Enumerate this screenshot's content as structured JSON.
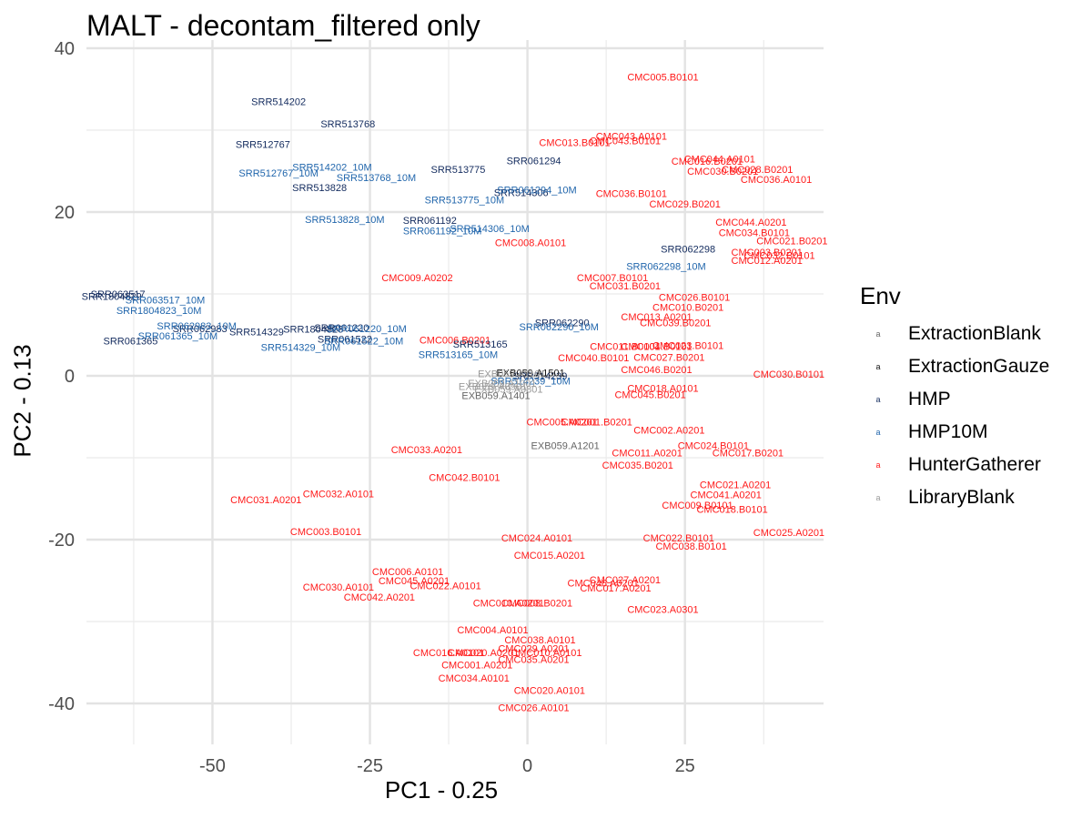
{
  "chart_data": {
    "type": "scatter",
    "title": "MALT - decontam_filtered only",
    "xlabel": "PC1 - 0.25",
    "ylabel": "PC2 - 0.13",
    "xlim": [
      -70,
      47
    ],
    "ylim": [
      -45,
      41
    ],
    "xticks": [
      -50,
      -25,
      0,
      25
    ],
    "xtick_labels": [
      "-50",
      "-25",
      "0",
      "25"
    ],
    "yticks": [
      -40,
      -20,
      0,
      20,
      40
    ],
    "ytick_labels": [
      "-40",
      "-20",
      "0",
      "20",
      "40"
    ],
    "grid": true,
    "legend_title": "Env",
    "legend_position": "right",
    "legend_key_glyph": "a",
    "groups": [
      {
        "name": "ExtractionBlank",
        "color": "#666666"
      },
      {
        "name": "ExtractionGauze",
        "color": "#111111"
      },
      {
        "name": "HMP",
        "color": "#132b5e"
      },
      {
        "name": "HMP10M",
        "color": "#2166ac"
      },
      {
        "name": "HunterGatherer",
        "color": "#ff1a1a"
      },
      {
        "name": "LibraryBlank",
        "color": "#9a9a9a"
      }
    ],
    "points": [
      {
        "label": "CMC005.B0101",
        "x": 21.5,
        "y": 36.5,
        "group": "HunterGatherer"
      },
      {
        "label": "CMC043.A0101",
        "x": 16.5,
        "y": 29.3,
        "group": "HunterGatherer"
      },
      {
        "label": "CMC013.B0101",
        "x": 7.5,
        "y": 28.5,
        "group": "HunterGatherer"
      },
      {
        "label": "CMC043.B0101",
        "x": 15.5,
        "y": 28.7,
        "group": "HunterGatherer"
      },
      {
        "label": "CMC044.A0101",
        "x": 30.5,
        "y": 26.5,
        "group": "HunterGatherer"
      },
      {
        "label": "CMC016.B0201",
        "x": 28.5,
        "y": 26.2,
        "group": "HunterGatherer"
      },
      {
        "label": "CMC030.B0201",
        "x": 31.0,
        "y": 25.0,
        "group": "HunterGatherer"
      },
      {
        "label": "CMC028.B0201",
        "x": 36.5,
        "y": 25.2,
        "group": "HunterGatherer"
      },
      {
        "label": "CMC036.A0101",
        "x": 39.5,
        "y": 24.0,
        "group": "HunterGatherer"
      },
      {
        "label": "CMC036.B0101",
        "x": 16.5,
        "y": 22.3,
        "group": "HunterGatherer"
      },
      {
        "label": "CMC029.B0201",
        "x": 25.0,
        "y": 21.0,
        "group": "HunterGatherer"
      },
      {
        "label": "CMC044.A0201",
        "x": 35.5,
        "y": 18.8,
        "group": "HunterGatherer"
      },
      {
        "label": "CMC034.B0101",
        "x": 36.0,
        "y": 17.5,
        "group": "HunterGatherer"
      },
      {
        "label": "CMC021.B0201",
        "x": 42.0,
        "y": 16.5,
        "group": "HunterGatherer"
      },
      {
        "label": "CMC008.A0101",
        "x": 0.5,
        "y": 16.3,
        "group": "HunterGatherer"
      },
      {
        "label": "CMC003.B0201",
        "x": 38.0,
        "y": 15.1,
        "group": "HunterGatherer"
      },
      {
        "label": "CMC032.B0101",
        "x": 40.0,
        "y": 14.7,
        "group": "HunterGatherer"
      },
      {
        "label": "CMC012.A0201",
        "x": 38.0,
        "y": 14.1,
        "group": "HunterGatherer"
      },
      {
        "label": "CMC009.A0202",
        "x": -17.5,
        "y": 12.0,
        "group": "HunterGatherer"
      },
      {
        "label": "CMC007.B0101",
        "x": 13.5,
        "y": 12.0,
        "group": "HunterGatherer"
      },
      {
        "label": "CMC031.B0201",
        "x": 15.5,
        "y": 11.0,
        "group": "HunterGatherer"
      },
      {
        "label": "CMC026.B0101",
        "x": 26.5,
        "y": 9.6,
        "group": "HunterGatherer"
      },
      {
        "label": "CMC010.B0201",
        "x": 25.5,
        "y": 8.4,
        "group": "HunterGatherer"
      },
      {
        "label": "CMC013.A0201",
        "x": 20.5,
        "y": 7.2,
        "group": "HunterGatherer"
      },
      {
        "label": "CMC039.B0201",
        "x": 23.5,
        "y": 6.5,
        "group": "HunterGatherer"
      },
      {
        "label": "CMC006.B0201",
        "x": -11.5,
        "y": 4.4,
        "group": "HunterGatherer"
      },
      {
        "label": "CMC011.B0101",
        "x": 15.5,
        "y": 3.6,
        "group": "HunterGatherer"
      },
      {
        "label": "CMC004.B0101",
        "x": 20.5,
        "y": 3.6,
        "group": "HunterGatherer"
      },
      {
        "label": "CMC023.B0101",
        "x": 25.5,
        "y": 3.7,
        "group": "HunterGatherer"
      },
      {
        "label": "CMC040.B0101",
        "x": 10.5,
        "y": 2.2,
        "group": "HunterGatherer"
      },
      {
        "label": "CMC027.B0201",
        "x": 22.5,
        "y": 2.3,
        "group": "HunterGatherer"
      },
      {
        "label": "CMC046.B0201",
        "x": 20.5,
        "y": 0.8,
        "group": "HunterGatherer"
      },
      {
        "label": "CMC030.B0101",
        "x": 41.5,
        "y": 0.2,
        "group": "HunterGatherer"
      },
      {
        "label": "CMC018.A0101",
        "x": 21.5,
        "y": -1.5,
        "group": "HunterGatherer"
      },
      {
        "label": "CMC045.B0201",
        "x": 19.5,
        "y": -2.3,
        "group": "HunterGatherer"
      },
      {
        "label": "CMC005.A0201",
        "x": 5.5,
        "y": -5.6,
        "group": "HunterGatherer"
      },
      {
        "label": "CMC001.B0201",
        "x": 11.0,
        "y": -5.6,
        "group": "HunterGatherer"
      },
      {
        "label": "CMC002.A0201",
        "x": 22.5,
        "y": -6.6,
        "group": "HunterGatherer"
      },
      {
        "label": "CMC033.A0201",
        "x": -16.0,
        "y": -9.0,
        "group": "HunterGatherer"
      },
      {
        "label": "CMC024.B0101",
        "x": 29.5,
        "y": -8.5,
        "group": "HunterGatherer"
      },
      {
        "label": "CMC011.A0201",
        "x": 19.0,
        "y": -9.4,
        "group": "HunterGatherer"
      },
      {
        "label": "CMC017.B0201",
        "x": 35.0,
        "y": -9.4,
        "group": "HunterGatherer"
      },
      {
        "label": "CMC035.B0201",
        "x": 17.5,
        "y": -10.9,
        "group": "HunterGatherer"
      },
      {
        "label": "CMC042.B0101",
        "x": -10.0,
        "y": -12.4,
        "group": "HunterGatherer"
      },
      {
        "label": "CMC021.A0201",
        "x": 33.0,
        "y": -13.3,
        "group": "HunterGatherer"
      },
      {
        "label": "CMC041.A0201",
        "x": 31.5,
        "y": -14.5,
        "group": "HunterGatherer"
      },
      {
        "label": "CMC032.A0101",
        "x": -30.0,
        "y": -14.4,
        "group": "HunterGatherer"
      },
      {
        "label": "CMC031.A0201",
        "x": -41.5,
        "y": -15.1,
        "group": "HunterGatherer"
      },
      {
        "label": "CMC009.B0101",
        "x": 27.0,
        "y": -15.8,
        "group": "HunterGatherer"
      },
      {
        "label": "CMC018.B0101",
        "x": 32.5,
        "y": -16.3,
        "group": "HunterGatherer"
      },
      {
        "label": "CMC003.B0101",
        "x": -32.0,
        "y": -19.0,
        "group": "HunterGatherer"
      },
      {
        "label": "CMC025.A0201",
        "x": 41.5,
        "y": -19.1,
        "group": "HunterGatherer"
      },
      {
        "label": "CMC024.A0101",
        "x": 1.5,
        "y": -19.8,
        "group": "HunterGatherer"
      },
      {
        "label": "CMC022.B0101",
        "x": 24.0,
        "y": -19.8,
        "group": "HunterGatherer"
      },
      {
        "label": "CMC038.B0101",
        "x": 26.0,
        "y": -20.8,
        "group": "HunterGatherer"
      },
      {
        "label": "CMC015.A0201",
        "x": 3.5,
        "y": -21.9,
        "group": "HunterGatherer"
      },
      {
        "label": "CMC006.A0101",
        "x": -19.0,
        "y": -23.9,
        "group": "HunterGatherer"
      },
      {
        "label": "CMC045.A0201",
        "x": -18.0,
        "y": -25.0,
        "group": "HunterGatherer"
      },
      {
        "label": "CMC027.A0201",
        "x": 15.5,
        "y": -24.9,
        "group": "HunterGatherer"
      },
      {
        "label": "CMC030.A0101",
        "x": -30.0,
        "y": -25.8,
        "group": "HunterGatherer"
      },
      {
        "label": "CMC022.A0101",
        "x": -13.0,
        "y": -25.6,
        "group": "HunterGatherer"
      },
      {
        "label": "CMC046.A0201",
        "x": 12.0,
        "y": -25.3,
        "group": "HunterGatherer"
      },
      {
        "label": "CMC017.A0201",
        "x": 14.0,
        "y": -25.9,
        "group": "HunterGatherer"
      },
      {
        "label": "CMC042.A0201",
        "x": -23.5,
        "y": -27.0,
        "group": "HunterGatherer"
      },
      {
        "label": "CMC010.A0201",
        "x": -3.0,
        "y": -27.7,
        "group": "HunterGatherer"
      },
      {
        "label": "CMC008.B0201",
        "x": 1.5,
        "y": -27.7,
        "group": "HunterGatherer"
      },
      {
        "label": "CMC023.A0301",
        "x": 21.5,
        "y": -28.5,
        "group": "HunterGatherer"
      },
      {
        "label": "CMC004.A0101",
        "x": -5.5,
        "y": -31.0,
        "group": "HunterGatherer"
      },
      {
        "label": "CMC038.A0101",
        "x": 2.0,
        "y": -32.2,
        "group": "HunterGatherer"
      },
      {
        "label": "CMC029.A0201",
        "x": 1.0,
        "y": -33.3,
        "group": "HunterGatherer"
      },
      {
        "label": "CMC016.A0101",
        "x": -12.5,
        "y": -33.8,
        "group": "HunterGatherer"
      },
      {
        "label": "CMC020.A0201",
        "x": -7.0,
        "y": -33.8,
        "group": "HunterGatherer"
      },
      {
        "label": "CMC010.A0101",
        "x": 3.0,
        "y": -33.8,
        "group": "HunterGatherer"
      },
      {
        "label": "CMC035.A0201",
        "x": 1.0,
        "y": -34.6,
        "group": "HunterGatherer"
      },
      {
        "label": "CMC001.A0201",
        "x": -8.0,
        "y": -35.3,
        "group": "HunterGatherer"
      },
      {
        "label": "CMC034.A0101",
        "x": -8.5,
        "y": -36.9,
        "group": "HunterGatherer"
      },
      {
        "label": "CMC020.A0101",
        "x": 3.5,
        "y": -38.4,
        "group": "HunterGatherer"
      },
      {
        "label": "CMC026.A0101",
        "x": 1.0,
        "y": -40.5,
        "group": "HunterGatherer"
      },
      {
        "label": "SRR514202",
        "x": -39.5,
        "y": 33.5,
        "group": "HMP"
      },
      {
        "label": "SRR513768",
        "x": -28.5,
        "y": 30.8,
        "group": "HMP"
      },
      {
        "label": "SRR512767",
        "x": -42.0,
        "y": 28.3,
        "group": "HMP"
      },
      {
        "label": "SRR061294",
        "x": 1.0,
        "y": 26.3,
        "group": "HMP"
      },
      {
        "label": "SRR513775",
        "x": -11.0,
        "y": 25.2,
        "group": "HMP"
      },
      {
        "label": "SRR513828",
        "x": -33.0,
        "y": 23.0,
        "group": "HMP"
      },
      {
        "label": "SRR514306",
        "x": -1.0,
        "y": 22.4,
        "group": "HMP"
      },
      {
        "label": "SRR061192",
        "x": -15.5,
        "y": 19.0,
        "group": "HMP"
      },
      {
        "label": "SRR062298",
        "x": 25.5,
        "y": 15.5,
        "group": "HMP"
      },
      {
        "label": "SRR063517",
        "x": -65.0,
        "y": 10.0,
        "group": "HMP"
      },
      {
        "label": "SRR1804829",
        "x": -66.0,
        "y": 9.7,
        "group": "HMP"
      },
      {
        "label": "SRR062983",
        "x": -52.0,
        "y": 5.8,
        "group": "HMP"
      },
      {
        "label": "SRR514329",
        "x": -43.0,
        "y": 5.4,
        "group": "HMP"
      },
      {
        "label": "SRR1804823",
        "x": -34.0,
        "y": 5.7,
        "group": "HMP"
      },
      {
        "label": "SRR061220",
        "x": -29.5,
        "y": 5.9,
        "group": "HMP"
      },
      {
        "label": "SRR061365",
        "x": -63.0,
        "y": 4.3,
        "group": "HMP"
      },
      {
        "label": "SRR061522",
        "x": -29.0,
        "y": 4.5,
        "group": "HMP"
      },
      {
        "label": "SRR062290",
        "x": 5.5,
        "y": 6.5,
        "group": "HMP"
      },
      {
        "label": "SRR513165",
        "x": -7.5,
        "y": 3.9,
        "group": "HMP"
      },
      {
        "label": "SRR514239",
        "x": 2.0,
        "y": -0.0,
        "group": "HMP"
      },
      {
        "label": "SRR514202_10M",
        "x": -31.0,
        "y": 25.5,
        "group": "HMP10M"
      },
      {
        "label": "SRR512767_10M",
        "x": -39.5,
        "y": 24.8,
        "group": "HMP10M"
      },
      {
        "label": "SRR513768_10M",
        "x": -24.0,
        "y": 24.2,
        "group": "HMP10M"
      },
      {
        "label": "SRR061294_10M",
        "x": 1.5,
        "y": 22.7,
        "group": "HMP10M"
      },
      {
        "label": "SRR513775_10M",
        "x": -10.0,
        "y": 21.5,
        "group": "HMP10M"
      },
      {
        "label": "SRR513828_10M",
        "x": -29.0,
        "y": 19.1,
        "group": "HMP10M"
      },
      {
        "label": "SRR514306_10M",
        "x": -6.0,
        "y": 18.0,
        "group": "HMP10M"
      },
      {
        "label": "SRR061192_10M",
        "x": -13.5,
        "y": 17.7,
        "group": "HMP10M"
      },
      {
        "label": "SRR062298_10M",
        "x": 22.0,
        "y": 13.4,
        "group": "HMP10M"
      },
      {
        "label": "SRR063517_10M",
        "x": -57.5,
        "y": 9.3,
        "group": "HMP10M"
      },
      {
        "label": "SRR1804823_10M",
        "x": -58.5,
        "y": 8.0,
        "group": "HMP10M"
      },
      {
        "label": "SRR062983_10M",
        "x": -52.5,
        "y": 6.1,
        "group": "HMP10M"
      },
      {
        "label": "SRR061220_10M",
        "x": -25.5,
        "y": 5.8,
        "group": "HMP10M"
      },
      {
        "label": "SRR061365_10M",
        "x": -55.5,
        "y": 4.9,
        "group": "HMP10M"
      },
      {
        "label": "SRR061522_10M",
        "x": -26.0,
        "y": 4.3,
        "group": "HMP10M"
      },
      {
        "label": "SRR514329_10M",
        "x": -36.0,
        "y": 3.5,
        "group": "HMP10M"
      },
      {
        "label": "SRR062290_10M",
        "x": 5.0,
        "y": 6.0,
        "group": "HMP10M"
      },
      {
        "label": "SRR513165_10M",
        "x": -11.0,
        "y": 2.6,
        "group": "HMP10M"
      },
      {
        "label": "SRR514239_10M",
        "x": 0.5,
        "y": -0.6,
        "group": "HMP10M"
      },
      {
        "label": "EXB059.A1501",
        "x": 0.5,
        "y": 0.4,
        "group": "ExtractionGauze"
      },
      {
        "label": "EXB059.A1201",
        "x": 6.0,
        "y": -8.5,
        "group": "ExtractionBlank"
      },
      {
        "label": "EXB059.A1401",
        "x": -5.0,
        "y": -2.4,
        "group": "ExtractionBlank"
      },
      {
        "label": "EXB059.A1101",
        "x": -2.5,
        "y": 0.3,
        "group": "LibraryBlank"
      },
      {
        "label": "EXB059.A1001",
        "x": -4.0,
        "y": -0.9,
        "group": "LibraryBlank"
      },
      {
        "label": "EXB059.A0901",
        "x": -5.5,
        "y": -1.3,
        "group": "LibraryBlank"
      },
      {
        "label": "EXB059.A0801",
        "x": -3.0,
        "y": -1.6,
        "group": "LibraryBlank"
      }
    ]
  }
}
